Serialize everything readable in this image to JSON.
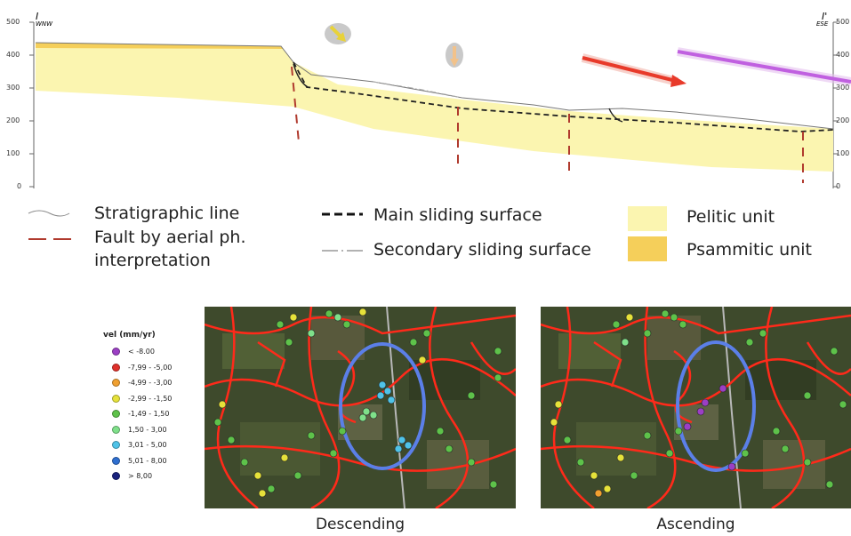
{
  "section": {
    "left_label": "I",
    "left_dir": "WNW",
    "right_label": "I'",
    "right_dir": "ESE",
    "y_ticks_left": [
      "500",
      "400",
      "300",
      "200",
      "100",
      "0"
    ],
    "y_ticks_right": [
      "500",
      "400",
      "300",
      "200",
      "100",
      "0"
    ]
  },
  "legend": {
    "stratigraphic_line": "Stratigraphic line",
    "fault_line1": "Fault by aerial ph.",
    "fault_line2": "interpretation",
    "main_sliding": "Main sliding surface",
    "secondary_sliding": "Secondary sliding surface",
    "pelitic": "Pelitic unit",
    "psammitic": "Psammitic unit"
  },
  "vel_legend": {
    "title": "vel (mm/yr)",
    "items": [
      {
        "label": "< -8.00",
        "color": "#9b3fc4"
      },
      {
        "label": "-7,99 - -5,00",
        "color": "#e0312b"
      },
      {
        "label": "-4,99 - -3,00",
        "color": "#f0a030"
      },
      {
        "label": "-2,99 - -1,50",
        "color": "#e6e23a"
      },
      {
        "label": "-1,49 - 1,50",
        "color": "#5ec24a"
      },
      {
        "label": "1,50 - 3,00",
        "color": "#7fe08a"
      },
      {
        "label": "3,01 - 5,00",
        "color": "#4fc3e8"
      },
      {
        "label": "5,01 - 8,00",
        "color": "#2f6fd0"
      },
      {
        "label": "> 8,00",
        "color": "#1a237e"
      }
    ]
  },
  "maps": {
    "descending": "Descending",
    "ascending": "Ascending"
  },
  "colors": {
    "pelitic": "#fbf5b0",
    "psammitic": "#f5cf5a",
    "fault": "#b03a2e",
    "red_arrow": "#e83a2a",
    "purple_arrow": "#c060e0",
    "map_lines": "#ff2a1a",
    "ellipse": "#5b7fe8"
  }
}
